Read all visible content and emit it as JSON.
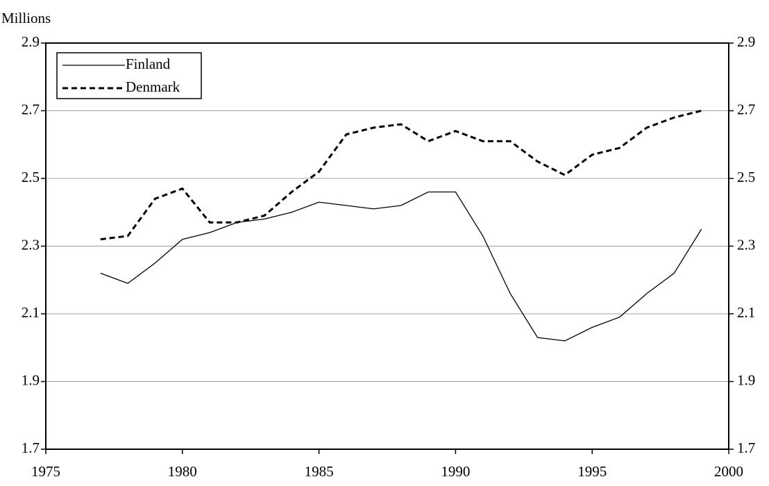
{
  "chart_data": {
    "type": "line",
    "y_label": "Millions",
    "x": [
      1977,
      1978,
      1979,
      1980,
      1981,
      1982,
      1983,
      1984,
      1985,
      1986,
      1987,
      1988,
      1989,
      1990,
      1991,
      1992,
      1993,
      1994,
      1995,
      1996,
      1997,
      1998,
      1999
    ],
    "series": [
      {
        "name": "Finland",
        "color": "#000000",
        "style": "solid",
        "values": [
          2.22,
          2.19,
          2.25,
          2.32,
          2.34,
          2.37,
          2.38,
          2.4,
          2.43,
          2.42,
          2.41,
          2.42,
          2.46,
          2.46,
          2.33,
          2.16,
          2.03,
          2.02,
          2.06,
          2.09,
          2.16,
          2.22,
          2.35
        ]
      },
      {
        "name": "Denmark",
        "color": "#000000",
        "style": "dashed",
        "values": [
          2.32,
          2.33,
          2.44,
          2.47,
          2.37,
          2.37,
          2.39,
          2.46,
          2.52,
          2.63,
          2.65,
          2.66,
          2.61,
          2.64,
          2.61,
          2.61,
          2.55,
          2.51,
          2.57,
          2.59,
          2.65,
          2.68,
          2.7
        ]
      }
    ],
    "xlim": [
      1975,
      2000
    ],
    "xticks": [
      1975,
      1980,
      1985,
      1990,
      1995,
      2000
    ],
    "ylim": [
      1.7,
      2.9
    ],
    "yticks": [
      1.7,
      1.9,
      2.1,
      2.3,
      2.5,
      2.7,
      2.9
    ],
    "y2lim": [
      1.7,
      2.9
    ],
    "y2ticks": [
      1.7,
      1.9,
      2.1,
      2.3,
      2.5,
      2.7,
      2.9
    ],
    "grid": true,
    "legend": "upper left"
  }
}
